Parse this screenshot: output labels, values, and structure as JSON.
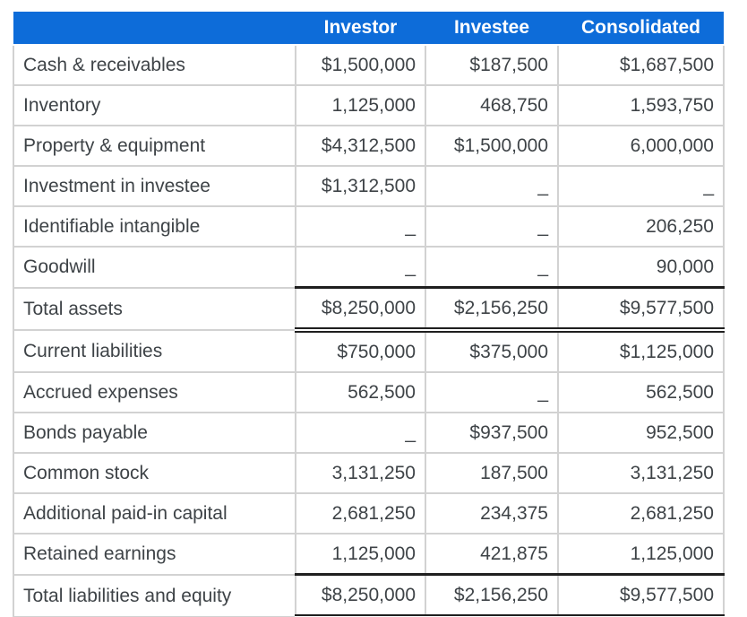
{
  "header": {
    "corner": "",
    "columns": [
      "Investor",
      "Investee",
      "Consolidated"
    ]
  },
  "rows": [
    {
      "label": "Cash & receivables",
      "values": [
        "$1,500,000",
        "$187,500",
        "$1,687,500"
      ],
      "total": false
    },
    {
      "label": "Inventory",
      "values": [
        "1,125,000",
        "468,750",
        "1,593,750"
      ],
      "total": false
    },
    {
      "label": "Property & equipment",
      "values": [
        "$4,312,500",
        "$1,500,000",
        "6,000,000"
      ],
      "total": false
    },
    {
      "label": "Investment in investee",
      "values": [
        "$1,312,500",
        "_",
        "_"
      ],
      "total": false
    },
    {
      "label": "Identifiable intangible",
      "values": [
        "_",
        "_",
        "206,250"
      ],
      "total": false
    },
    {
      "label": "Goodwill",
      "values": [
        "_",
        "_",
        "90,000"
      ],
      "total": false
    },
    {
      "label": "Total assets",
      "values": [
        "$8,250,000",
        "$2,156,250",
        "$9,577,500"
      ],
      "total": true
    },
    {
      "label": "Current liabilities",
      "values": [
        "$750,000",
        "$375,000",
        "$1,125,000"
      ],
      "total": false
    },
    {
      "label": "Accrued expenses",
      "values": [
        "562,500",
        "_",
        "562,500"
      ],
      "total": false
    },
    {
      "label": "Bonds payable",
      "values": [
        "_",
        "$937,500",
        "952,500"
      ],
      "total": false
    },
    {
      "label": "Common stock",
      "values": [
        "3,131,250",
        "187,500",
        "3,131,250"
      ],
      "total": false
    },
    {
      "label": "Additional paid-in capital",
      "values": [
        "2,681,250",
        "234,375",
        "2,681,250"
      ],
      "total": false
    },
    {
      "label": "Retained earnings",
      "values": [
        "1,125,000",
        "421,875",
        "1,125,000"
      ],
      "total": false
    },
    {
      "label": "Total liabilities and equity",
      "values": [
        "$8,250,000",
        "$2,156,250",
        "$9,577,500"
      ],
      "total": true
    }
  ],
  "colors": {
    "header_bg": "#0d6cd9",
    "header_text": "#ffffff",
    "body_text": "#3e4347",
    "grid_border": "#d2d2d2",
    "total_border": "#1f1f1f",
    "page_bg": "#ffffff"
  },
  "chart_data": {
    "type": "table",
    "title": "",
    "columns": [
      "",
      "Investor",
      "Investee",
      "Consolidated"
    ],
    "rows": [
      [
        "Cash & receivables",
        "$1,500,000",
        "$187,500",
        "$1,687,500"
      ],
      [
        "Inventory",
        "1,125,000",
        "468,750",
        "1,593,750"
      ],
      [
        "Property & equipment",
        "$4,312,500",
        "$1,500,000",
        "6,000,000"
      ],
      [
        "Investment in investee",
        "$1,312,500",
        "_",
        "_"
      ],
      [
        "Identifiable intangible",
        "_",
        "_",
        "206,250"
      ],
      [
        "Goodwill",
        "_",
        "_",
        "90,000"
      ],
      [
        "Total assets",
        "$8,250,000",
        "$2,156,250",
        "$9,577,500"
      ],
      [
        "Current liabilities",
        "$750,000",
        "$375,000",
        "$1,125,000"
      ],
      [
        "Accrued expenses",
        "562,500",
        "_",
        "562,500"
      ],
      [
        "Bonds payable",
        "_",
        "$937,500",
        "952,500"
      ],
      [
        "Common stock",
        "3,131,250",
        "187,500",
        "3,131,250"
      ],
      [
        "Additional paid-in capital",
        "2,681,250",
        "234,375",
        "2,681,250"
      ],
      [
        "Retained earnings",
        "1,125,000",
        "421,875",
        "1,125,000"
      ],
      [
        "Total liabilities and equity",
        "$8,250,000",
        "$2,156,250",
        "$9,577,500"
      ]
    ]
  }
}
